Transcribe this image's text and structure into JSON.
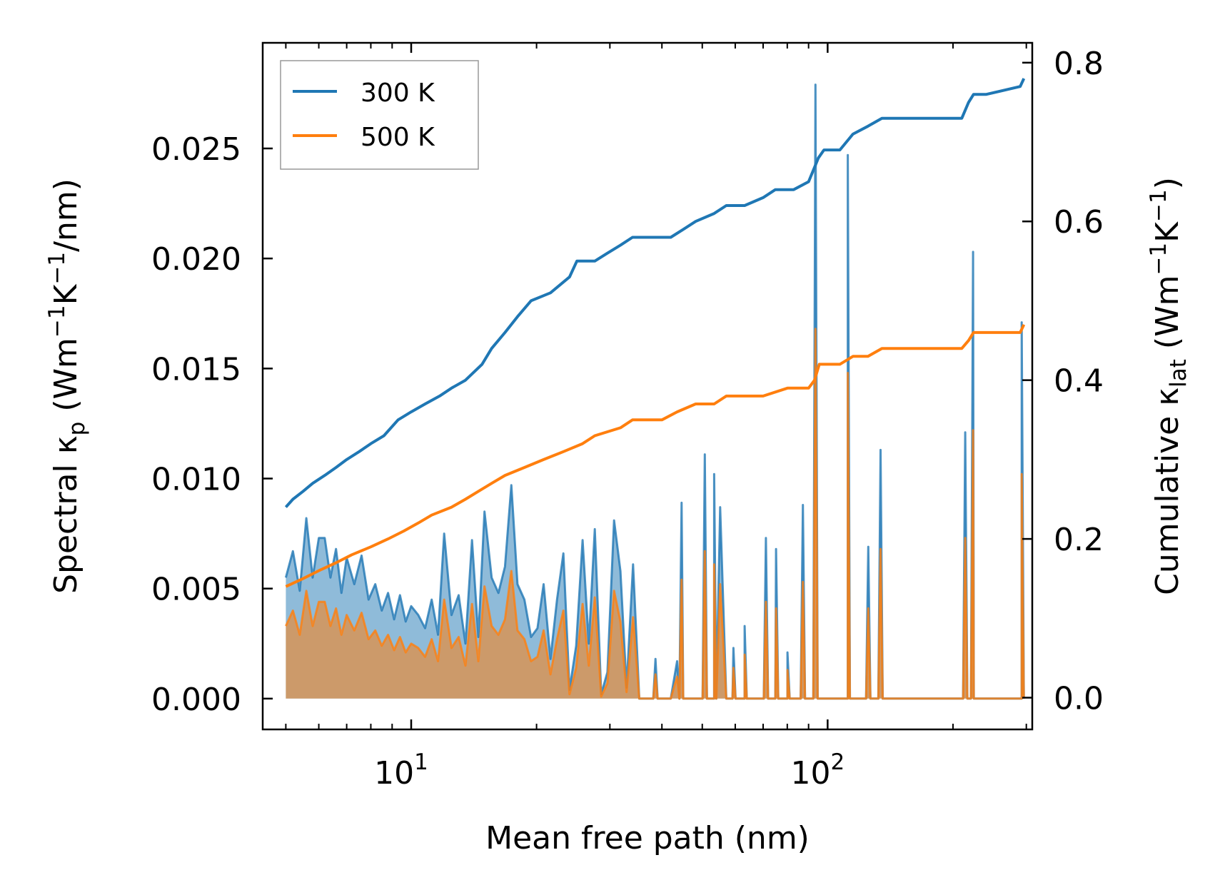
{
  "chart_data": {
    "type": "line",
    "title": "",
    "xlabel": "Mean free path (nm)",
    "xscale": "log",
    "xlim": [
      4.4,
      310
    ],
    "x_ticks": [
      {
        "value": 10,
        "base": "10",
        "exp": "1"
      },
      {
        "value": 100,
        "base": "10",
        "exp": "2"
      }
    ],
    "ylabel_left": {
      "prefix": "Spectral κ",
      "sub": "p",
      "mid": " (Wm",
      "sup1": "−1",
      "mid2": "K",
      "sup2": "−1",
      "suffix": "/nm)"
    },
    "ylim_left": [
      -0.0014,
      0.0298
    ],
    "yticks_left": [
      "0.000",
      "0.005",
      "0.010",
      "0.015",
      "0.020",
      "0.025"
    ],
    "ylabel_right": {
      "prefix": "Cumulative κ",
      "sub": "lat",
      "mid": " (Wm",
      "sup1": "−1",
      "mid2": "K",
      "sup2": "−1",
      "suffix": ")"
    },
    "ylim_right": [
      -0.04,
      0.825
    ],
    "yticks_right": [
      "0.0",
      "0.2",
      "0.4",
      "0.6",
      "0.8"
    ],
    "legend": {
      "position": "upper-left",
      "entries": [
        {
          "label": "300 K",
          "color": "#1f77b4"
        },
        {
          "label": "500 K",
          "color": "#ff7f0e"
        }
      ]
    },
    "spectral_x": [
      5.0,
      5.2,
      5.4,
      5.6,
      5.8,
      6.0,
      6.2,
      6.4,
      6.6,
      6.8,
      7.0,
      7.3,
      7.6,
      7.9,
      8.2,
      8.5,
      8.8,
      9.1,
      9.4,
      9.7,
      10.0,
      10.4,
      10.8,
      11.2,
      11.6,
      12.0,
      12.5,
      13.0,
      13.5,
      14.0,
      14.5,
      15.0,
      15.6,
      16.2,
      16.8,
      17.4,
      18.0,
      18.7,
      19.4,
      20.1,
      20.8,
      21.6,
      22.4,
      23.2,
      24.0,
      24.9,
      25.8,
      26.7,
      27.6,
      28.6,
      29.6,
      30.7,
      31.8,
      32.9,
      34.1,
      35.3,
      36.6,
      37.9,
      39.2,
      40.6,
      42.0,
      43.5,
      45.0,
      46.6,
      48.2,
      49.9,
      51.6,
      53.4,
      55.2,
      57.1,
      59.1,
      61.1,
      63.2,
      65.4,
      67.7,
      70.0,
      72.4,
      74.9,
      77.5,
      80.1,
      82.9,
      85.7,
      88.6,
      91.6,
      94.7,
      97.9,
      101.2,
      104.6,
      108.2,
      111.8,
      115.6,
      119.5,
      123.5,
      127.7,
      132.0,
      136.5,
      141.1,
      145.9,
      150.8,
      155.9,
      161.2,
      166.6,
      172.2,
      178.0,
      184.0,
      190.2,
      196.6,
      203.2,
      210.0,
      217.1,
      224.4,
      232.0,
      239.8,
      247.9,
      256.2,
      264.8,
      273.7,
      282.9,
      292.4
    ],
    "series": [
      {
        "name": "300 K",
        "color": "#1f77b4",
        "spectral": [
          0.0055,
          0.0067,
          0.0049,
          0.0082,
          0.0055,
          0.0073,
          0.0073,
          0.0055,
          0.0068,
          0.0048,
          0.0064,
          0.0052,
          0.0065,
          0.0045,
          0.0052,
          0.004,
          0.0048,
          0.0036,
          0.0047,
          0.0035,
          0.0042,
          0.0038,
          0.0032,
          0.0045,
          0.0029,
          0.0075,
          0.0038,
          0.0047,
          0.0025,
          0.0072,
          0.0028,
          0.0085,
          0.0055,
          0.0048,
          0.006,
          0.0097,
          0.0052,
          0.0045,
          0.0028,
          0.0032,
          0.0052,
          0.0018,
          0.0045,
          0.0066,
          0.0004,
          0.0024,
          0.0072,
          0.0025,
          0.0077,
          0.0002,
          0.0012,
          0.0081,
          0.0058,
          0.0005,
          0.0061,
          0.0,
          0.0,
          0.0,
          0.0,
          0.0,
          0.0,
          0.0017,
          0.0,
          0.0,
          0.0,
          0.0,
          0.0,
          0.0,
          0.0087,
          0.0,
          0.0,
          0.0,
          0.0,
          0.0,
          0.0,
          0.0,
          0.0,
          0.0,
          0.0,
          0.0,
          0.0,
          0.0,
          0.0,
          0.0,
          0.0,
          0.0,
          0.0,
          0.0,
          0.0,
          0.0,
          0.0,
          0.0,
          0.0,
          0.0,
          0.0,
          0.0,
          0.0,
          0.0,
          0.0,
          0.0,
          0.0,
          0.0,
          0.0,
          0.0,
          0.0,
          0.0,
          0.0,
          0.0,
          0.0,
          0.0,
          0.0,
          0.0,
          0.0,
          0.0,
          0.0,
          0.0,
          0.0,
          0.0,
          0.0
        ],
        "spikes": [
          [
            38.6,
            0.0018
          ],
          [
            44.6,
            0.0089
          ],
          [
            50.7,
            0.0111
          ],
          [
            53.4,
            0.0102
          ],
          [
            59.4,
            0.0023
          ],
          [
            63.2,
            0.0033
          ],
          [
            71.1,
            0.0073
          ],
          [
            75.2,
            0.0068
          ],
          [
            80.1,
            0.0021
          ],
          [
            87.2,
            0.0088
          ],
          [
            93.5,
            0.0279
          ],
          [
            111.8,
            0.0247
          ],
          [
            125.2,
            0.0069
          ],
          [
            134.0,
            0.0113
          ],
          [
            214.0,
            0.0121
          ],
          [
            223.5,
            0.0203
          ],
          [
            292.4,
            0.0171
          ]
        ],
        "cumulative": [
          [
            5.0,
            0.24
          ],
          [
            5.2,
            0.25
          ],
          [
            5.5,
            0.26
          ],
          [
            5.8,
            0.27
          ],
          [
            6.2,
            0.28
          ],
          [
            6.6,
            0.29
          ],
          [
            7.0,
            0.3
          ],
          [
            7.5,
            0.31
          ],
          [
            8.0,
            0.32
          ],
          [
            8.6,
            0.33
          ],
          [
            9.3,
            0.35
          ],
          [
            10.0,
            0.36
          ],
          [
            10.8,
            0.37
          ],
          [
            11.7,
            0.38
          ],
          [
            12.5,
            0.39
          ],
          [
            13.5,
            0.4
          ],
          [
            14.8,
            0.42
          ],
          [
            15.6,
            0.44
          ],
          [
            16.8,
            0.46
          ],
          [
            18.0,
            0.48
          ],
          [
            19.4,
            0.5
          ],
          [
            21.6,
            0.51
          ],
          [
            24.0,
            0.53
          ],
          [
            25.0,
            0.55
          ],
          [
            27.6,
            0.55
          ],
          [
            29.6,
            0.56
          ],
          [
            31.8,
            0.57
          ],
          [
            34.0,
            0.58
          ],
          [
            36.6,
            0.58
          ],
          [
            42.0,
            0.58
          ],
          [
            45.0,
            0.59
          ],
          [
            48.2,
            0.6
          ],
          [
            53.4,
            0.61
          ],
          [
            57.1,
            0.62
          ],
          [
            63.2,
            0.62
          ],
          [
            70.0,
            0.63
          ],
          [
            74.9,
            0.64
          ],
          [
            82.9,
            0.64
          ],
          [
            90.0,
            0.65
          ],
          [
            95.0,
            0.68
          ],
          [
            98.0,
            0.69
          ],
          [
            107.0,
            0.69
          ],
          [
            115.0,
            0.71
          ],
          [
            125.0,
            0.72
          ],
          [
            135.0,
            0.73
          ],
          [
            160.0,
            0.73
          ],
          [
            210.0,
            0.73
          ],
          [
            218.0,
            0.75
          ],
          [
            224.0,
            0.76
          ],
          [
            240.0,
            0.76
          ],
          [
            290.0,
            0.77
          ],
          [
            296.0,
            0.78
          ]
        ]
      },
      {
        "name": "500 K",
        "color": "#ff7f0e",
        "spectral": [
          0.0033,
          0.004,
          0.0029,
          0.0049,
          0.0033,
          0.0044,
          0.0044,
          0.0033,
          0.0041,
          0.0029,
          0.0038,
          0.0031,
          0.0039,
          0.0027,
          0.0031,
          0.0024,
          0.0029,
          0.0022,
          0.0028,
          0.0021,
          0.0025,
          0.0023,
          0.0019,
          0.0027,
          0.0017,
          0.0045,
          0.0023,
          0.0028,
          0.0015,
          0.0043,
          0.0017,
          0.0051,
          0.0033,
          0.0029,
          0.0036,
          0.0058,
          0.0031,
          0.0027,
          0.0017,
          0.0019,
          0.0031,
          0.0011,
          0.0027,
          0.004,
          0.0002,
          0.0014,
          0.0043,
          0.0015,
          0.0046,
          0.0001,
          0.0007,
          0.0049,
          0.0035,
          0.0003,
          0.0037,
          0.0,
          0.0,
          0.0,
          0.0,
          0.0,
          0.0,
          0.001,
          0.0,
          0.0,
          0.0,
          0.0,
          0.0,
          0.0,
          0.0052,
          0.0,
          0.0,
          0.0,
          0.0,
          0.0,
          0.0,
          0.0,
          0.0,
          0.0,
          0.0,
          0.0,
          0.0,
          0.0,
          0.0,
          0.0,
          0.0,
          0.0,
          0.0,
          0.0,
          0.0,
          0.0,
          0.0,
          0.0,
          0.0,
          0.0,
          0.0,
          0.0,
          0.0,
          0.0,
          0.0,
          0.0,
          0.0,
          0.0,
          0.0,
          0.0,
          0.0,
          0.0,
          0.0,
          0.0,
          0.0,
          0.0,
          0.0,
          0.0,
          0.0,
          0.0,
          0.0,
          0.0,
          0.0,
          0.0,
          0.0
        ],
        "spikes": [
          [
            38.6,
            0.0011
          ],
          [
            44.6,
            0.0054
          ],
          [
            50.7,
            0.0067
          ],
          [
            53.4,
            0.0061
          ],
          [
            59.4,
            0.0014
          ],
          [
            63.2,
            0.002
          ],
          [
            71.1,
            0.0044
          ],
          [
            75.2,
            0.0041
          ],
          [
            80.1,
            0.0013
          ],
          [
            87.2,
            0.0053
          ],
          [
            93.5,
            0.0168
          ],
          [
            111.8,
            0.0148
          ],
          [
            125.2,
            0.0041
          ],
          [
            134.0,
            0.0068
          ],
          [
            214.0,
            0.0073
          ],
          [
            223.5,
            0.0122
          ],
          [
            292.4,
            0.0102
          ]
        ],
        "cumulative": [
          [
            5.0,
            0.14
          ],
          [
            5.5,
            0.15
          ],
          [
            6.0,
            0.16
          ],
          [
            6.6,
            0.17
          ],
          [
            7.2,
            0.18
          ],
          [
            8.0,
            0.19
          ],
          [
            8.8,
            0.2
          ],
          [
            9.6,
            0.21
          ],
          [
            10.4,
            0.22
          ],
          [
            11.2,
            0.23
          ],
          [
            12.5,
            0.24
          ],
          [
            13.5,
            0.25
          ],
          [
            14.5,
            0.26
          ],
          [
            15.6,
            0.27
          ],
          [
            16.8,
            0.28
          ],
          [
            18.7,
            0.29
          ],
          [
            20.8,
            0.3
          ],
          [
            23.2,
            0.31
          ],
          [
            25.8,
            0.32
          ],
          [
            27.6,
            0.33
          ],
          [
            31.8,
            0.34
          ],
          [
            34.0,
            0.35
          ],
          [
            40.0,
            0.35
          ],
          [
            43.5,
            0.36
          ],
          [
            48.2,
            0.37
          ],
          [
            53.4,
            0.37
          ],
          [
            57.1,
            0.38
          ],
          [
            63.2,
            0.38
          ],
          [
            70.0,
            0.38
          ],
          [
            80.1,
            0.39
          ],
          [
            90.0,
            0.39
          ],
          [
            93.0,
            0.4
          ],
          [
            95.5,
            0.42
          ],
          [
            107.0,
            0.42
          ],
          [
            115.0,
            0.43
          ],
          [
            125.0,
            0.43
          ],
          [
            135.0,
            0.44
          ],
          [
            160.0,
            0.44
          ],
          [
            210.0,
            0.44
          ],
          [
            218.0,
            0.45
          ],
          [
            224.0,
            0.46
          ],
          [
            240.0,
            0.46
          ],
          [
            290.0,
            0.46
          ],
          [
            296.0,
            0.47
          ]
        ]
      }
    ]
  }
}
